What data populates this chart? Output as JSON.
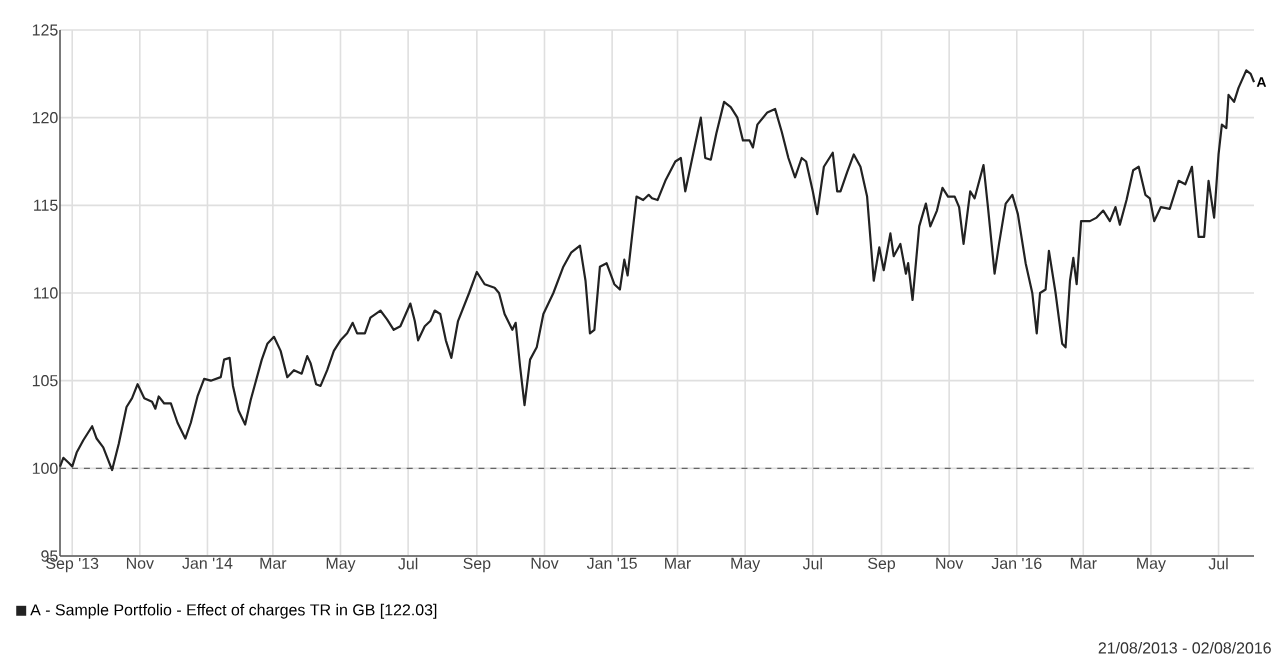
{
  "chart_data": {
    "type": "line",
    "xlim": [
      "2013-08-21",
      "2016-08-02"
    ],
    "ylim": [
      95,
      125
    ],
    "xticks": [
      {
        "value": "2013-09-01",
        "label": "Sep '13"
      },
      {
        "value": "2013-11-01",
        "label": "Nov"
      },
      {
        "value": "2014-01-01",
        "label": "Jan '14"
      },
      {
        "value": "2014-03-01",
        "label": "Mar"
      },
      {
        "value": "2014-05-01",
        "label": "May"
      },
      {
        "value": "2014-07-01",
        "label": "Jul"
      },
      {
        "value": "2014-09-01",
        "label": "Sep"
      },
      {
        "value": "2014-11-01",
        "label": "Nov"
      },
      {
        "value": "2015-01-01",
        "label": "Jan '15"
      },
      {
        "value": "2015-03-01",
        "label": "Mar"
      },
      {
        "value": "2015-05-01",
        "label": "May"
      },
      {
        "value": "2015-07-01",
        "label": "Jul"
      },
      {
        "value": "2015-09-01",
        "label": "Sep"
      },
      {
        "value": "2015-11-01",
        "label": "Nov"
      },
      {
        "value": "2016-01-01",
        "label": "Jan '16"
      },
      {
        "value": "2016-03-01",
        "label": "Mar"
      },
      {
        "value": "2016-05-01",
        "label": "May"
      },
      {
        "value": "2016-07-01",
        "label": "Jul"
      }
    ],
    "yticks": [
      95,
      100,
      105,
      110,
      115,
      120,
      125
    ],
    "grid": true,
    "legend": "bottom left",
    "marker": "none",
    "line_style": "solid",
    "ref_lines": [
      {
        "axis": "y",
        "value": 100,
        "label": null,
        "color": "#666666",
        "line_style": "dashed"
      }
    ],
    "annotations": [
      "21/08/2013 - 02/08/2016",
      {
        "text": "A",
        "x": "2016-08-02",
        "y": 122.03
      }
    ],
    "x": [
      "2013-08-21",
      "2013-08-24",
      "2013-08-29",
      "2013-09-01",
      "2013-09-05",
      "2013-09-11",
      "2013-09-19",
      "2013-09-23",
      "2013-09-29",
      "2013-10-07",
      "2013-10-13",
      "2013-10-20",
      "2013-10-25",
      "2013-10-30",
      "2013-11-05",
      "2013-11-12",
      "2013-11-15",
      "2013-11-18",
      "2013-11-23",
      "2013-11-29",
      "2013-12-05",
      "2013-12-12",
      "2013-12-17",
      "2013-12-23",
      "2013-12-29",
      "2014-01-04",
      "2014-01-13",
      "2014-01-16",
      "2014-01-21",
      "2014-01-24",
      "2014-01-29",
      "2014-02-04",
      "2014-02-09",
      "2014-02-19",
      "2014-02-24",
      "2014-03-02",
      "2014-03-08",
      "2014-03-14",
      "2014-03-20",
      "2014-03-27",
      "2014-04-01",
      "2014-04-04",
      "2014-04-09",
      "2014-04-13",
      "2014-04-19",
      "2014-04-25",
      "2014-05-01",
      "2014-05-07",
      "2014-05-12",
      "2014-05-16",
      "2014-05-23",
      "2014-05-28",
      "2014-06-06",
      "2014-06-12",
      "2014-06-18",
      "2014-06-24",
      "2014-07-03",
      "2014-07-07",
      "2014-07-10",
      "2014-07-16",
      "2014-07-21",
      "2014-07-25",
      "2014-07-30",
      "2014-08-04",
      "2014-08-09",
      "2014-08-15",
      "2014-08-25",
      "2014-09-01",
      "2014-09-08",
      "2014-09-17",
      "2014-09-21",
      "2014-09-26",
      "2014-10-03",
      "2014-10-06",
      "2014-10-10",
      "2014-10-14",
      "2014-10-19",
      "2014-10-25",
      "2014-10-31",
      "2014-11-09",
      "2014-11-18",
      "2014-11-25",
      "2014-12-03",
      "2014-12-08",
      "2014-12-12",
      "2014-12-16",
      "2014-12-21",
      "2014-12-27",
      "2015-01-03",
      "2015-01-08",
      "2015-01-12",
      "2015-01-15",
      "2015-01-23",
      "2015-01-29",
      "2015-02-03",
      "2015-02-06",
      "2015-02-11",
      "2015-02-18",
      "2015-02-27",
      "2015-03-04",
      "2015-03-08",
      "2015-03-13",
      "2015-03-22",
      "2015-03-26",
      "2015-03-31",
      "2015-04-05",
      "2015-04-12",
      "2015-04-18",
      "2015-04-24",
      "2015-04-29",
      "2015-05-05",
      "2015-05-08",
      "2015-05-12",
      "2015-05-21",
      "2015-05-28",
      "2015-06-03",
      "2015-06-09",
      "2015-06-15",
      "2015-06-21",
      "2015-06-25",
      "2015-07-01",
      "2015-07-05",
      "2015-07-11",
      "2015-07-19",
      "2015-07-23",
      "2015-07-26",
      "2015-08-01",
      "2015-08-07",
      "2015-08-13",
      "2015-08-19",
      "2015-08-25",
      "2015-08-30",
      "2015-09-03",
      "2015-09-09",
      "2015-09-12",
      "2015-09-18",
      "2015-09-23",
      "2015-09-25",
      "2015-09-29",
      "2015-10-05",
      "2015-10-11",
      "2015-10-15",
      "2015-10-21",
      "2015-10-26",
      "2015-10-31",
      "2015-11-06",
      "2015-11-10",
      "2015-11-14",
      "2015-11-20",
      "2015-11-24",
      "2015-12-02",
      "2015-12-06",
      "2015-12-12",
      "2015-12-16",
      "2015-12-22",
      "2015-12-28",
      "2016-01-02",
      "2016-01-09",
      "2016-01-15",
      "2016-01-19",
      "2016-01-22",
      "2016-01-27",
      "2016-01-30",
      "2016-02-05",
      "2016-02-11",
      "2016-02-14",
      "2016-02-18",
      "2016-02-21",
      "2016-02-24",
      "2016-02-28",
      "2016-03-07",
      "2016-03-13",
      "2016-03-19",
      "2016-03-25",
      "2016-03-30",
      "2016-04-03",
      "2016-04-09",
      "2016-04-15",
      "2016-04-20",
      "2016-04-26",
      "2016-04-30",
      "2016-05-04",
      "2016-05-10",
      "2016-05-18",
      "2016-05-26",
      "2016-06-01",
      "2016-06-07",
      "2016-06-13",
      "2016-06-18",
      "2016-06-22",
      "2016-06-27",
      "2016-07-01",
      "2016-07-04",
      "2016-07-08",
      "2016-07-10",
      "2016-07-15",
      "2016-07-19",
      "2016-07-26",
      "2016-07-30",
      "2016-08-02"
    ],
    "series": [
      {
        "name": "A - Sample Portfolio - Effect of charges TR in GB [122.03]",
        "color": "#222222",
        "values": [
          100.1,
          100.6,
          100.3,
          100.1,
          100.9,
          101.6,
          102.4,
          101.7,
          101.2,
          99.9,
          101.4,
          103.5,
          104.0,
          104.8,
          104.0,
          103.8,
          103.4,
          104.1,
          103.7,
          103.7,
          102.6,
          101.7,
          102.6,
          104.1,
          105.1,
          105.0,
          105.2,
          106.2,
          106.3,
          104.7,
          103.3,
          102.5,
          103.9,
          106.2,
          107.1,
          107.5,
          106.7,
          105.2,
          105.6,
          105.4,
          106.4,
          106.0,
          104.8,
          104.7,
          105.6,
          106.7,
          107.3,
          107.7,
          108.3,
          107.7,
          107.7,
          108.6,
          109.0,
          108.5,
          107.9,
          108.1,
          109.4,
          108.4,
          107.3,
          108.1,
          108.4,
          109.0,
          108.8,
          107.3,
          106.3,
          108.4,
          110.0,
          111.2,
          110.5,
          110.3,
          110.0,
          108.8,
          107.9,
          108.3,
          105.8,
          103.6,
          106.2,
          106.9,
          108.8,
          110.0,
          111.5,
          112.3,
          112.7,
          110.7,
          107.7,
          107.9,
          111.5,
          111.7,
          110.5,
          110.2,
          111.9,
          111.0,
          115.5,
          115.3,
          115.6,
          115.4,
          115.3,
          116.4,
          117.5,
          117.7,
          115.8,
          117.3,
          120.0,
          117.7,
          117.6,
          119.1,
          120.9,
          120.6,
          120.0,
          118.7,
          118.7,
          118.3,
          119.6,
          120.3,
          120.5,
          119.2,
          117.7,
          116.6,
          117.7,
          117.5,
          115.8,
          114.5,
          117.2,
          118.0,
          115.8,
          115.8,
          116.9,
          117.9,
          117.2,
          115.5,
          110.7,
          112.6,
          111.3,
          113.4,
          112.1,
          112.8,
          111.1,
          111.7,
          109.6,
          113.8,
          115.1,
          113.8,
          114.7,
          116.0,
          115.5,
          115.5,
          114.9,
          112.8,
          115.8,
          115.4,
          117.3,
          114.9,
          111.1,
          112.8,
          115.1,
          115.6,
          114.5,
          111.7,
          110.0,
          107.7,
          110.0,
          110.2,
          112.4,
          110.0,
          107.1,
          106.9,
          110.7,
          112.0,
          110.5,
          114.1,
          114.1,
          114.3,
          114.7,
          114.1,
          114.9,
          113.9,
          115.3,
          117.0,
          117.2,
          115.6,
          115.4,
          114.1,
          114.9,
          114.8,
          116.4,
          116.2,
          117.2,
          113.2,
          113.2,
          116.4,
          114.3,
          117.9,
          119.6,
          119.4,
          121.3,
          120.9,
          121.7,
          122.7,
          122.5,
          122.03
        ]
      }
    ]
  }
}
